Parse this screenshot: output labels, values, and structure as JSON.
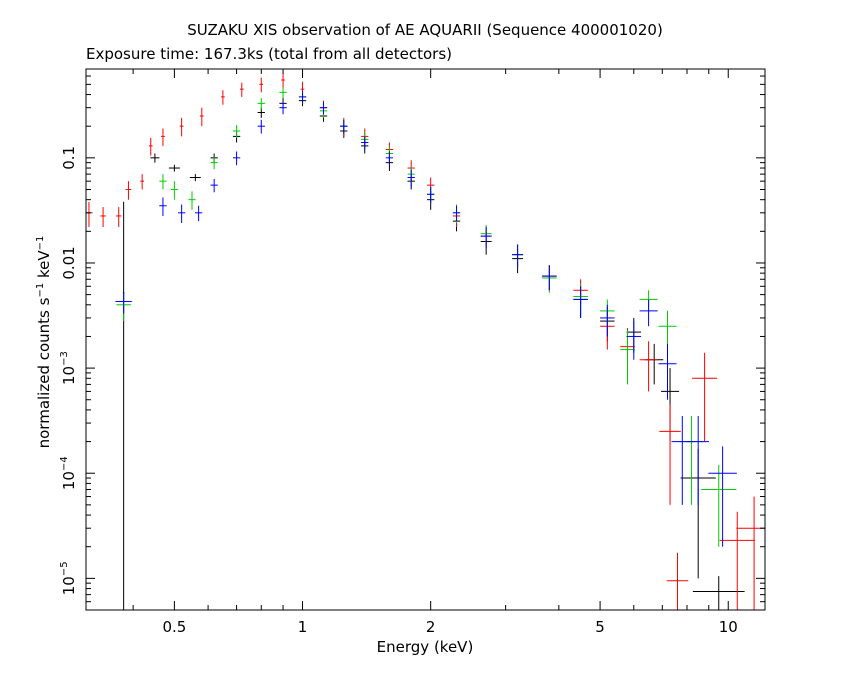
{
  "chart_data": {
    "type": "scatter",
    "title": "SUZAKU XIS observation of AE AQUARII (Sequence 400001020)",
    "subtitle": "Exposure time: 167.3ks (total from all detectors)",
    "xlabel": "Energy (keV)",
    "ylabel_parts": {
      "base": "normalized counts s",
      "exp1": "−1",
      "mid": " keV",
      "exp2": "−1"
    },
    "x_scale": "log",
    "y_scale": "log",
    "xlim": [
      0.31,
      12.2
    ],
    "ylim": [
      5e-06,
      0.7
    ],
    "x_ticks": [
      {
        "value": 0.5,
        "label": "0.5"
      },
      {
        "value": 1,
        "label": "1"
      },
      {
        "value": 2,
        "label": "2"
      },
      {
        "value": 5,
        "label": "5"
      },
      {
        "value": 10,
        "label": "10"
      }
    ],
    "y_ticks": [
      {
        "value": 0.1,
        "label": "0.1",
        "exp": ""
      },
      {
        "value": 0.01,
        "label": "0.01",
        "exp": ""
      },
      {
        "value": 0.001,
        "label": "10",
        "exp": "−3"
      },
      {
        "value": 0.0001,
        "label": "10",
        "exp": "−4"
      },
      {
        "value": 1e-05,
        "label": "10",
        "exp": "−5"
      }
    ],
    "series": [
      {
        "color": "#000000",
        "points": [
          [
            0.38,
            0.0052,
            0.004,
            0.033
          ],
          [
            0.45,
            0.1,
            0.025,
            0.01
          ],
          [
            0.5,
            0.08,
            0.03,
            0.006
          ],
          [
            0.56,
            0.065,
            0.03,
            0.005
          ],
          [
            0.62,
            0.1,
            0.02,
            0.01
          ],
          [
            0.7,
            0.16,
            0.02,
            0.02
          ],
          [
            0.8,
            0.27,
            0.02,
            0.03
          ],
          [
            0.9,
            0.33,
            0.02,
            0.04
          ],
          [
            1.0,
            0.35,
            0.02,
            0.04
          ],
          [
            1.12,
            0.25,
            0.02,
            0.03
          ],
          [
            1.25,
            0.18,
            0.02,
            0.025
          ],
          [
            1.4,
            0.13,
            0.02,
            0.02
          ],
          [
            1.6,
            0.09,
            0.02,
            0.015
          ],
          [
            1.8,
            0.06,
            0.02,
            0.01
          ],
          [
            2.0,
            0.04,
            0.02,
            0.008
          ],
          [
            2.3,
            0.025,
            0.02,
            0.005
          ],
          [
            2.7,
            0.016,
            0.03,
            0.004
          ],
          [
            3.2,
            0.011,
            0.03,
            0.003
          ],
          [
            3.8,
            0.0075,
            0.04,
            0.002
          ],
          [
            4.5,
            0.0045,
            0.04,
            0.0015
          ],
          [
            5.2,
            0.0028,
            0.04,
            0.001
          ],
          [
            6.0,
            0.0022,
            0.04,
            0.0008
          ],
          [
            6.7,
            0.0012,
            0.05,
            0.0005
          ],
          [
            7.3,
            0.0006,
            0.05,
            0.0004
          ],
          [
            8.5,
            9e-05,
            0.1,
            8e-05
          ],
          [
            9.5,
            7.5e-06,
            0.15,
            3e-06
          ]
        ]
      },
      {
        "color": "#ff0000",
        "points": [
          [
            0.315,
            0.03,
            0.02,
            0.008
          ],
          [
            0.34,
            0.028,
            0.015,
            0.006
          ],
          [
            0.37,
            0.028,
            0.015,
            0.006
          ],
          [
            0.39,
            0.05,
            0.015,
            0.01
          ],
          [
            0.42,
            0.06,
            0.01,
            0.01
          ],
          [
            0.44,
            0.13,
            0.01,
            0.025
          ],
          [
            0.47,
            0.16,
            0.01,
            0.03
          ],
          [
            0.52,
            0.2,
            0.01,
            0.04
          ],
          [
            0.58,
            0.25,
            0.01,
            0.05
          ],
          [
            0.65,
            0.38,
            0.01,
            0.06
          ],
          [
            0.72,
            0.45,
            0.01,
            0.07
          ],
          [
            0.8,
            0.5,
            0.01,
            0.08
          ],
          [
            0.9,
            0.55,
            0.01,
            0.09
          ],
          [
            1.0,
            0.45,
            0.01,
            0.08
          ],
          [
            1.12,
            0.3,
            0.02,
            0.05
          ],
          [
            1.25,
            0.2,
            0.02,
            0.04
          ],
          [
            1.4,
            0.16,
            0.02,
            0.03
          ],
          [
            1.6,
            0.12,
            0.02,
            0.02
          ],
          [
            1.8,
            0.08,
            0.02,
            0.015
          ],
          [
            2.0,
            0.055,
            0.02,
            0.01
          ],
          [
            2.3,
            0.028,
            0.02,
            0.006
          ],
          [
            2.7,
            0.018,
            0.03,
            0.004
          ],
          [
            3.2,
            0.012,
            0.03,
            0.003
          ],
          [
            3.8,
            0.0075,
            0.04,
            0.002
          ],
          [
            4.5,
            0.0055,
            0.04,
            0.0015
          ],
          [
            5.2,
            0.0025,
            0.04,
            0.001
          ],
          [
            5.8,
            0.0016,
            0.04,
            0.0008
          ],
          [
            6.5,
            0.0012,
            0.05,
            0.0006
          ],
          [
            7.3,
            0.00025,
            0.06,
            0.0002
          ],
          [
            7.6,
            9.5e-06,
            0.06,
            8e-06
          ],
          [
            8.8,
            0.0008,
            0.07,
            0.0006
          ],
          [
            10.5,
            2.3e-05,
            0.1,
            2e-05
          ],
          [
            11.5,
            3e-05,
            0.1,
            3e-05
          ]
        ]
      },
      {
        "color": "#00cc00",
        "points": [
          [
            0.38,
            0.004,
            0.04,
            0.0012
          ],
          [
            0.47,
            0.06,
            0.02,
            0.01
          ],
          [
            0.5,
            0.05,
            0.02,
            0.01
          ],
          [
            0.55,
            0.04,
            0.02,
            0.008
          ],
          [
            0.62,
            0.09,
            0.02,
            0.012
          ],
          [
            0.7,
            0.18,
            0.02,
            0.025
          ],
          [
            0.8,
            0.33,
            0.02,
            0.04
          ],
          [
            0.9,
            0.42,
            0.02,
            0.05
          ],
          [
            1.0,
            0.38,
            0.02,
            0.05
          ],
          [
            1.12,
            0.28,
            0.02,
            0.04
          ],
          [
            1.25,
            0.2,
            0.02,
            0.03
          ],
          [
            1.4,
            0.15,
            0.02,
            0.025
          ],
          [
            1.6,
            0.11,
            0.02,
            0.02
          ],
          [
            1.8,
            0.07,
            0.02,
            0.012
          ],
          [
            2.0,
            0.045,
            0.02,
            0.008
          ],
          [
            2.3,
            0.03,
            0.02,
            0.006
          ],
          [
            2.7,
            0.019,
            0.03,
            0.004
          ],
          [
            3.2,
            0.012,
            0.03,
            0.003
          ],
          [
            3.8,
            0.0072,
            0.04,
            0.002
          ],
          [
            4.5,
            0.0048,
            0.04,
            0.0015
          ],
          [
            5.2,
            0.0035,
            0.04,
            0.001
          ],
          [
            5.8,
            0.0015,
            0.04,
            0.0008
          ],
          [
            6.5,
            0.0045,
            0.05,
            0.001
          ],
          [
            7.2,
            0.0025,
            0.05,
            0.001
          ],
          [
            8.2,
            0.0002,
            0.07,
            0.00015
          ],
          [
            9.5,
            7e-05,
            0.1,
            5e-05
          ]
        ]
      },
      {
        "color": "#0000ff",
        "points": [
          [
            0.38,
            0.0043,
            0.045,
            0.001
          ],
          [
            0.47,
            0.035,
            0.02,
            0.007
          ],
          [
            0.52,
            0.03,
            0.02,
            0.006
          ],
          [
            0.57,
            0.03,
            0.02,
            0.005
          ],
          [
            0.62,
            0.055,
            0.02,
            0.008
          ],
          [
            0.7,
            0.1,
            0.02,
            0.015
          ],
          [
            0.8,
            0.2,
            0.02,
            0.03
          ],
          [
            0.9,
            0.3,
            0.02,
            0.04
          ],
          [
            1.0,
            0.38,
            0.02,
            0.05
          ],
          [
            1.12,
            0.3,
            0.02,
            0.04
          ],
          [
            1.25,
            0.2,
            0.02,
            0.03
          ],
          [
            1.4,
            0.14,
            0.02,
            0.02
          ],
          [
            1.6,
            0.1,
            0.02,
            0.015
          ],
          [
            1.8,
            0.065,
            0.02,
            0.012
          ],
          [
            2.0,
            0.045,
            0.02,
            0.008
          ],
          [
            2.3,
            0.03,
            0.02,
            0.005
          ],
          [
            2.7,
            0.018,
            0.03,
            0.004
          ],
          [
            3.2,
            0.012,
            0.03,
            0.003
          ],
          [
            3.8,
            0.0075,
            0.04,
            0.002
          ],
          [
            4.5,
            0.0045,
            0.04,
            0.0015
          ],
          [
            5.2,
            0.003,
            0.04,
            0.001
          ],
          [
            6.0,
            0.002,
            0.04,
            0.0008
          ],
          [
            6.5,
            0.0035,
            0.05,
            0.001
          ],
          [
            7.2,
            0.0011,
            0.05,
            0.0006
          ],
          [
            7.8,
            0.0002,
            0.06,
            0.00015
          ],
          [
            8.5,
            0.0002,
            0.06,
            0.00015
          ],
          [
            9.7,
            0.0001,
            0.08,
            8e-05
          ]
        ]
      }
    ]
  }
}
